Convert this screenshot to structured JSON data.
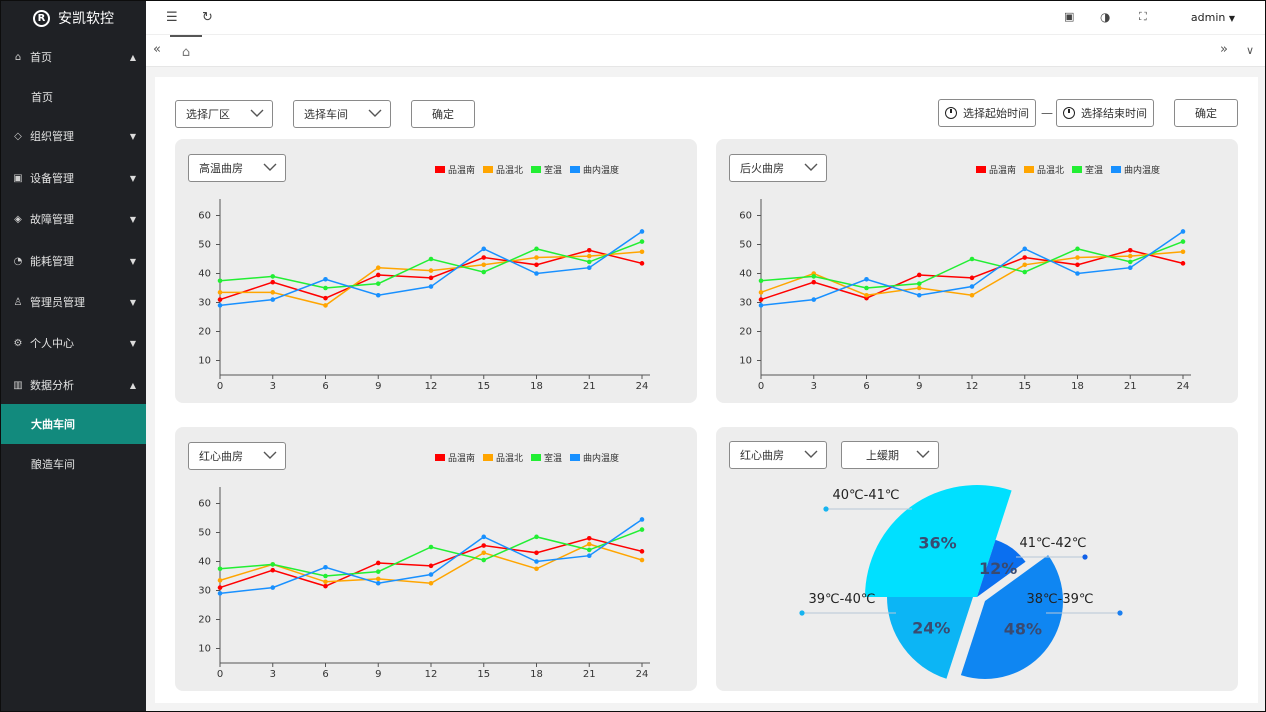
{
  "app": {
    "logo_mark": "R",
    "title": "安凯软控"
  },
  "sidebar": {
    "items": [
      {
        "label": "首页",
        "icon": "home-icon",
        "glyph": "⌂",
        "caret": "up",
        "type": "parent"
      },
      {
        "label": "首页",
        "type": "sub"
      },
      {
        "label": "组织管理",
        "icon": "tag-icon",
        "glyph": "◇",
        "caret": "down",
        "type": "parent"
      },
      {
        "label": "设备管理",
        "icon": "device-icon",
        "glyph": "▣",
        "caret": "down",
        "type": "parent"
      },
      {
        "label": "故障管理",
        "icon": "shield-icon",
        "glyph": "◈",
        "caret": "down",
        "type": "parent"
      },
      {
        "label": "能耗管理",
        "icon": "gauge-icon",
        "glyph": "◔",
        "caret": "down",
        "type": "parent"
      },
      {
        "label": "管理员管理",
        "icon": "user-icon",
        "glyph": "♙",
        "caret": "down",
        "type": "parent"
      },
      {
        "label": "个人中心",
        "icon": "gear-icon",
        "glyph": "⚙",
        "caret": "down",
        "type": "parent"
      },
      {
        "label": "数据分析",
        "icon": "chart-icon",
        "glyph": "▥",
        "caret": "up",
        "type": "parent"
      },
      {
        "label": "大曲车间",
        "type": "sub",
        "active": true
      },
      {
        "label": "酿造车间",
        "type": "sub"
      }
    ]
  },
  "header": {
    "user": "admin"
  },
  "filters": {
    "factory": "选择厂区",
    "workshop": "选择车间",
    "confirm_left": "确定",
    "start_time": "选择起始时间",
    "separator": "—",
    "end_time": "选择结束时间",
    "confirm_right": "确定"
  },
  "legend": [
    "品温南",
    "品温北",
    "室温",
    "曲内温度"
  ],
  "colors": {
    "accent": "#128a7d",
    "series": [
      "#ff0000",
      "#ffa500",
      "#22ee33",
      "#1890ff"
    ]
  },
  "panels": {
    "p1": {
      "select": "高温曲房"
    },
    "p2": {
      "select": "后火曲房"
    },
    "p3": {
      "select": "红心曲房"
    },
    "p4": {
      "select": "红心曲房",
      "select2": "上缓期"
    }
  },
  "chart_data": [
    {
      "type": "line",
      "x": [
        0,
        3,
        6,
        9,
        12,
        15,
        18,
        21,
        24
      ],
      "ylim": [
        5,
        65
      ],
      "yticks": [
        10,
        20,
        30,
        40,
        50,
        60
      ],
      "series": [
        {
          "name": "品温南",
          "values": [
            31,
            37,
            31.5,
            39.5,
            38.5,
            45.5,
            43,
            48,
            43.5
          ]
        },
        {
          "name": "品温北",
          "values": [
            33.5,
            33.5,
            29,
            42,
            41,
            43,
            45.5,
            46,
            47.5
          ]
        },
        {
          "name": "室温",
          "values": [
            37.5,
            39,
            35,
            36.5,
            45,
            40.5,
            48.5,
            44,
            51
          ]
        },
        {
          "name": "曲内温度",
          "values": [
            29,
            31,
            38,
            32.5,
            35.5,
            48.5,
            40,
            42,
            54.5
          ]
        }
      ]
    },
    {
      "type": "line",
      "x": [
        0,
        3,
        6,
        9,
        12,
        15,
        18,
        21,
        24
      ],
      "ylim": [
        5,
        65
      ],
      "yticks": [
        10,
        20,
        30,
        40,
        50,
        60
      ],
      "series": [
        {
          "name": "品温南",
          "values": [
            31,
            37,
            31.5,
            39.5,
            38.5,
            45.5,
            43,
            48,
            43.5
          ]
        },
        {
          "name": "品温北",
          "values": [
            33.5,
            40,
            32.5,
            35,
            32.5,
            43,
            45.5,
            46,
            47.5
          ]
        },
        {
          "name": "室温",
          "values": [
            37.5,
            39,
            35,
            36.5,
            45,
            40.5,
            48.5,
            44,
            51
          ]
        },
        {
          "name": "曲内温度",
          "values": [
            29,
            31,
            38,
            32.5,
            35.5,
            48.5,
            40,
            42,
            54.5
          ]
        }
      ]
    },
    {
      "type": "line",
      "x": [
        0,
        3,
        6,
        9,
        12,
        15,
        18,
        21,
        24
      ],
      "ylim": [
        5,
        65
      ],
      "yticks": [
        10,
        20,
        30,
        40,
        50,
        60
      ],
      "series": [
        {
          "name": "品温南",
          "values": [
            31,
            37,
            31.5,
            39.5,
            38.5,
            45.5,
            43,
            48,
            43.5
          ]
        },
        {
          "name": "品温北",
          "values": [
            33.5,
            39,
            33,
            34,
            32.5,
            43,
            37.5,
            46,
            40.5
          ]
        },
        {
          "name": "室温",
          "values": [
            37.5,
            39,
            35,
            36.5,
            45,
            40.5,
            48.5,
            44,
            51
          ]
        },
        {
          "name": "曲内温度",
          "values": [
            29,
            31,
            38,
            32.5,
            35.5,
            48.5,
            40,
            42,
            54.5
          ]
        }
      ]
    },
    {
      "type": "pie",
      "slices": [
        {
          "range": "40℃-41℃",
          "percent": "36%",
          "value": 36,
          "color": "#00e0ff"
        },
        {
          "range": "41℃-42℃",
          "percent": "12%",
          "value": 12,
          "color": "#0a6ff0"
        },
        {
          "range": "38℃-39℃",
          "percent": "48%",
          "value": 48,
          "color": "#0f86f2"
        },
        {
          "range": "39℃-40℃",
          "percent": "24%",
          "value": 24,
          "color": "#0cb5f5"
        }
      ]
    }
  ]
}
